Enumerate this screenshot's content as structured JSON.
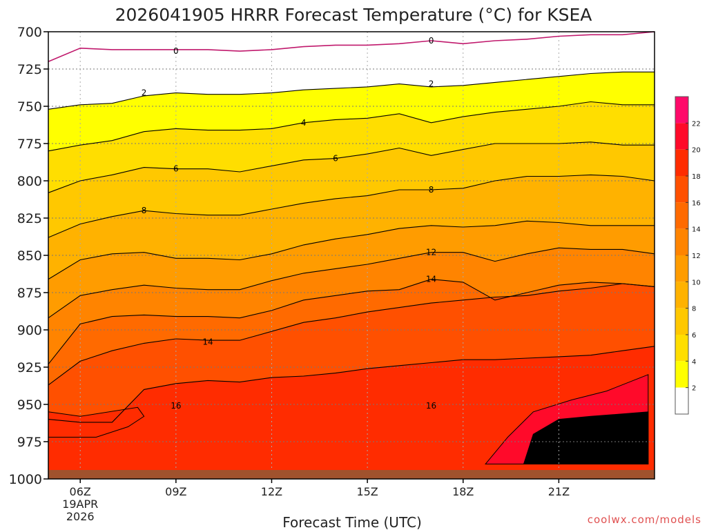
{
  "chart_data": {
    "type": "contour",
    "title": "2026041905 HRRR Forecast Temperature (°C) for KSEA",
    "xlabel": "Forecast Time (UTC)",
    "ylabel": "",
    "credit": "coolwx.com/models",
    "y_axis": {
      "variable": "pressure (hPa)",
      "range": [
        1000,
        700
      ],
      "ticks": [
        "700",
        "725",
        "750",
        "775",
        "800",
        "825",
        "850",
        "875",
        "900",
        "925",
        "950",
        "975",
        "1000"
      ]
    },
    "x_axis": {
      "range_hours_utc": [
        5,
        24
      ],
      "ticks": [
        {
          "hour": 6,
          "label": "06Z",
          "sublabels": [
            "19APR",
            "2026"
          ]
        },
        {
          "hour": 9,
          "label": "09Z"
        },
        {
          "hour": 12,
          "label": "12Z"
        },
        {
          "hour": 15,
          "label": "15Z"
        },
        {
          "hour": 18,
          "label": "18Z"
        },
        {
          "hour": 21,
          "label": "21Z"
        }
      ]
    },
    "hours": [
      5,
      6,
      7,
      8,
      9,
      10,
      11,
      12,
      13,
      14,
      15,
      16,
      17,
      18,
      19,
      20,
      21,
      22,
      23,
      24
    ],
    "isotherms": [
      {
        "level": 0,
        "pressure": [
          720,
          711,
          712,
          712,
          712,
          712,
          713,
          712,
          710,
          709,
          709,
          708,
          706,
          708,
          706,
          705,
          703,
          702,
          702,
          700
        ]
      },
      {
        "level": 2,
        "pressure": [
          752,
          749,
          748,
          743,
          741,
          742,
          742,
          741,
          739,
          738,
          737,
          735,
          737,
          736,
          734,
          732,
          730,
          728,
          727,
          727
        ]
      },
      {
        "level": 4,
        "pressure": [
          780,
          776,
          773,
          767,
          765,
          766,
          766,
          765,
          761,
          759,
          758,
          755,
          761,
          757,
          754,
          752,
          750,
          747,
          749,
          749
        ]
      },
      {
        "level": 6,
        "pressure": [
          808,
          800,
          796,
          791,
          792,
          792,
          794,
          790,
          786,
          785,
          782,
          778,
          783,
          779,
          775,
          775,
          775,
          774,
          776,
          776
        ]
      },
      {
        "level": 8,
        "pressure": [
          838,
          829,
          824,
          820,
          822,
          823,
          823,
          819,
          815,
          812,
          810,
          806,
          806,
          805,
          800,
          797,
          797,
          796,
          797,
          800
        ]
      },
      {
        "level": 10,
        "pressure": [
          866,
          853,
          849,
          848,
          852,
          852,
          853,
          849,
          843,
          839,
          836,
          832,
          830,
          831,
          830,
          827,
          828,
          830,
          830,
          830
        ]
      },
      {
        "level": 12,
        "pressure": [
          892,
          877,
          873,
          870,
          872,
          873,
          873,
          867,
          862,
          859,
          856,
          852,
          848,
          848,
          854,
          849,
          845,
          846,
          846,
          849
        ]
      },
      {
        "level": 14,
        "pressure": [
          923,
          896,
          891,
          890,
          891,
          891,
          892,
          887,
          880,
          877,
          874,
          873,
          866,
          868,
          880,
          875,
          870,
          868,
          869,
          871
        ]
      },
      {
        "level": 16,
        "pressure": [
          937,
          921,
          914,
          909,
          906,
          907,
          907,
          901,
          895,
          892,
          888,
          885,
          882,
          880,
          878,
          877,
          874,
          872,
          869,
          871
        ]
      },
      {
        "level": 18,
        "pressure": [
          960,
          962,
          962,
          940,
          936,
          934,
          935,
          932,
          931,
          929,
          926,
          924,
          922,
          920,
          920,
          919,
          918,
          917,
          914,
          911
        ]
      }
    ],
    "contour_labels": [
      {
        "text": "0",
        "hour": 9.0,
        "pressure": 713
      },
      {
        "text": "0",
        "hour": 17.0,
        "pressure": 706
      },
      {
        "text": "2",
        "hour": 8.0,
        "pressure": 741
      },
      {
        "text": "2",
        "hour": 17.0,
        "pressure": 735
      },
      {
        "text": "4",
        "hour": 13.0,
        "pressure": 761
      },
      {
        "text": "6",
        "hour": 9.0,
        "pressure": 792
      },
      {
        "text": "6",
        "hour": 14.0,
        "pressure": 785
      },
      {
        "text": "8",
        "hour": 8.0,
        "pressure": 820
      },
      {
        "text": "8",
        "hour": 17.0,
        "pressure": 806
      },
      {
        "text": "12",
        "hour": 17.0,
        "pressure": 848
      },
      {
        "text": "14",
        "hour": 17.0,
        "pressure": 866
      },
      {
        "text": "14",
        "hour": 10.0,
        "pressure": 908
      },
      {
        "text": "16",
        "hour": 9.0,
        "pressure": 951
      },
      {
        "text": "16",
        "hour": 17.0,
        "pressure": 951
      }
    ],
    "warm_pockets": [
      {
        "level": 18,
        "points": [
          [
            5,
            955
          ],
          [
            6,
            958
          ],
          [
            7.8,
            952
          ],
          [
            8,
            958
          ],
          [
            7.5,
            965
          ],
          [
            6.5,
            972
          ],
          [
            5,
            972
          ]
        ]
      },
      {
        "level": 20,
        "points": [
          [
            18.7,
            990
          ],
          [
            19.4,
            972
          ],
          [
            20.2,
            955
          ],
          [
            21.4,
            947
          ],
          [
            22.5,
            941
          ],
          [
            23.8,
            930
          ],
          [
            23.8,
            990
          ]
        ]
      },
      {
        "level": 22,
        "points": [
          [
            19.9,
            990
          ],
          [
            20.2,
            970
          ],
          [
            21,
            960
          ],
          [
            22,
            958
          ],
          [
            23.8,
            955
          ],
          [
            23.8,
            990
          ]
        ]
      }
    ],
    "colorbar": {
      "levels": [
        2,
        4,
        6,
        8,
        10,
        12,
        14,
        16,
        18,
        20,
        22
      ],
      "colors": {
        "below_0": "#ffffff",
        "0_2": "#ffffff",
        "2_4": "#ffff00",
        "4_6": "#ffde00",
        "6_8": "#ffc800",
        "8_10": "#ffb200",
        "10_12": "#ff9c00",
        "12_14": "#ff8400",
        "14_16": "#ff6a00",
        "16_18": "#ff5000",
        "18_20": "#ff2c00",
        "20_22": "#ff0a2a",
        "above_22": "#ff0a6a"
      }
    },
    "ground_color": "#a0522d",
    "freezing_line_color": "#c0186c"
  }
}
